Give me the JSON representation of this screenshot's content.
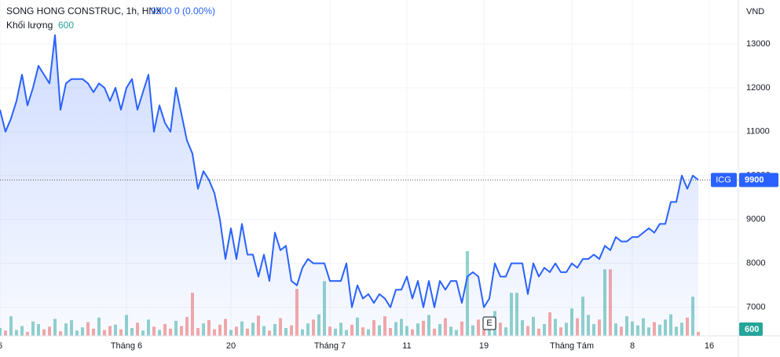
{
  "chart_data": {
    "type": "line",
    "title": "SONG HONG CONSTRUC, 1h, HNX",
    "change": "0 (0.00%)",
    "unit": "VND",
    "categories": [
      "6",
      null,
      null,
      null,
      null,
      null,
      null,
      null,
      null,
      null,
      null,
      null,
      null,
      null,
      null,
      null,
      null,
      null,
      null,
      null,
      null,
      null,
      null,
      "Tháng 6",
      null,
      null,
      null,
      null,
      null,
      null,
      null,
      null,
      null,
      null,
      null,
      null,
      null,
      null,
      null,
      null,
      null,
      null,
      "20",
      null,
      null,
      null,
      null,
      null,
      null,
      null,
      null,
      null,
      null,
      null,
      null,
      null,
      null,
      null,
      null,
      null,
      "Tháng 7",
      null,
      null,
      null,
      null,
      null,
      null,
      null,
      null,
      null,
      null,
      null,
      null,
      null,
      "11",
      null,
      null,
      null,
      null,
      null,
      null,
      null,
      null,
      null,
      null,
      null,
      null,
      null,
      "19",
      null,
      null,
      null,
      null,
      null,
      null,
      null,
      null,
      null,
      null,
      null,
      null,
      null,
      null,
      null,
      "Tháng Tám",
      null,
      null,
      null,
      null,
      null,
      null,
      null,
      null,
      null,
      null,
      "8",
      null,
      null,
      null,
      null,
      null,
      null,
      null,
      null,
      null,
      null,
      null,
      null,
      null,
      "16"
    ],
    "series": [
      {
        "name": "ICG",
        "color": "#2962ff",
        "values": [
          11500,
          11000,
          11300,
          11700,
          12300,
          11600,
          12000,
          12500,
          12300,
          12100,
          13200,
          11500,
          12100,
          12200,
          12200,
          12200,
          12100,
          11900,
          12100,
          12000,
          11700,
          12000,
          11500,
          12000,
          12200,
          11500,
          11900,
          12300,
          11000,
          11600,
          11200,
          11000,
          12000,
          11400,
          10800,
          10500,
          9700,
          10100,
          9900,
          9600,
          9000,
          8100,
          8800,
          8100,
          8900,
          8200,
          8200,
          7700,
          8200,
          7600,
          8700,
          8300,
          8400,
          7600,
          7500,
          7900,
          8100,
          8000,
          8000,
          8000,
          7600,
          7600,
          7600,
          8000,
          7000,
          7500,
          7200,
          7300,
          7100,
          7300,
          7200,
          7000,
          7400,
          7400,
          7700,
          7200,
          7600,
          7000,
          7600,
          7000,
          7600,
          7400,
          7600,
          7600,
          7100,
          7700,
          7800,
          7700,
          7000,
          7200,
          8000,
          7700,
          7700,
          8000,
          8000,
          8000,
          7300,
          8000,
          7700,
          7900,
          7800,
          8000,
          7800,
          7800,
          8000,
          7900,
          8100,
          8100,
          8200,
          8100,
          8400,
          8300,
          8600,
          8500,
          8500,
          8600,
          8600,
          8700,
          8800,
          8700,
          8900,
          8900,
          9400,
          9400,
          10000,
          9700,
          10000,
          9900,
          null,
          null
        ]
      },
      {
        "name": "Khối lượng",
        "axis": "y2",
        "up_color": "rgba(38,166,154,0.5)",
        "down_color": "rgba(239,83,80,0.5)",
        "values": [
          1200,
          800,
          3000,
          900,
          1500,
          600,
          2200,
          1800,
          1000,
          1400,
          2600,
          700,
          1900,
          2400,
          800,
          1300,
          2100,
          1100,
          2800,
          900,
          1500,
          1700,
          1000,
          3200,
          1200,
          2000,
          800,
          2500,
          1400,
          900,
          1800,
          1100,
          2300,
          1500,
          2900,
          6600,
          1200,
          1900,
          2400,
          1000,
          1700,
          2600,
          900,
          1400,
          2200,
          1100,
          2000,
          3100,
          1500,
          800,
          1800,
          2700,
          1200,
          1600,
          7200,
          1000,
          1900,
          2500,
          3300,
          8400,
          1400,
          1100,
          2000,
          900,
          1700,
          2800,
          1300,
          1000,
          2400,
          1600,
          3000,
          1200,
          2100,
          2600,
          1500,
          1000,
          1900,
          2300,
          3200,
          1100,
          1800,
          2700,
          1400,
          900,
          2200,
          13000,
          1600,
          2500,
          1000,
          1700,
          3800,
          2000,
          1300,
          6600,
          6600,
          2400,
          1500,
          2900,
          1100,
          1800,
          3600,
          2600,
          1300,
          2000,
          4200,
          2700,
          6000,
          3200,
          1800,
          2500,
          10200,
          10200,
          1900,
          1400,
          3000,
          2200,
          1600,
          2700,
          1300,
          2100,
          1700,
          2500,
          3300,
          1400,
          2000,
          2800,
          6000,
          600,
          null,
          null
        ]
      }
    ],
    "ylim": [
      6350,
      14000
    ],
    "yticks": [
      7000,
      8000,
      9000,
      10000,
      11000,
      12000,
      13000
    ],
    "grid": true,
    "event_marker": "E"
  }
}
